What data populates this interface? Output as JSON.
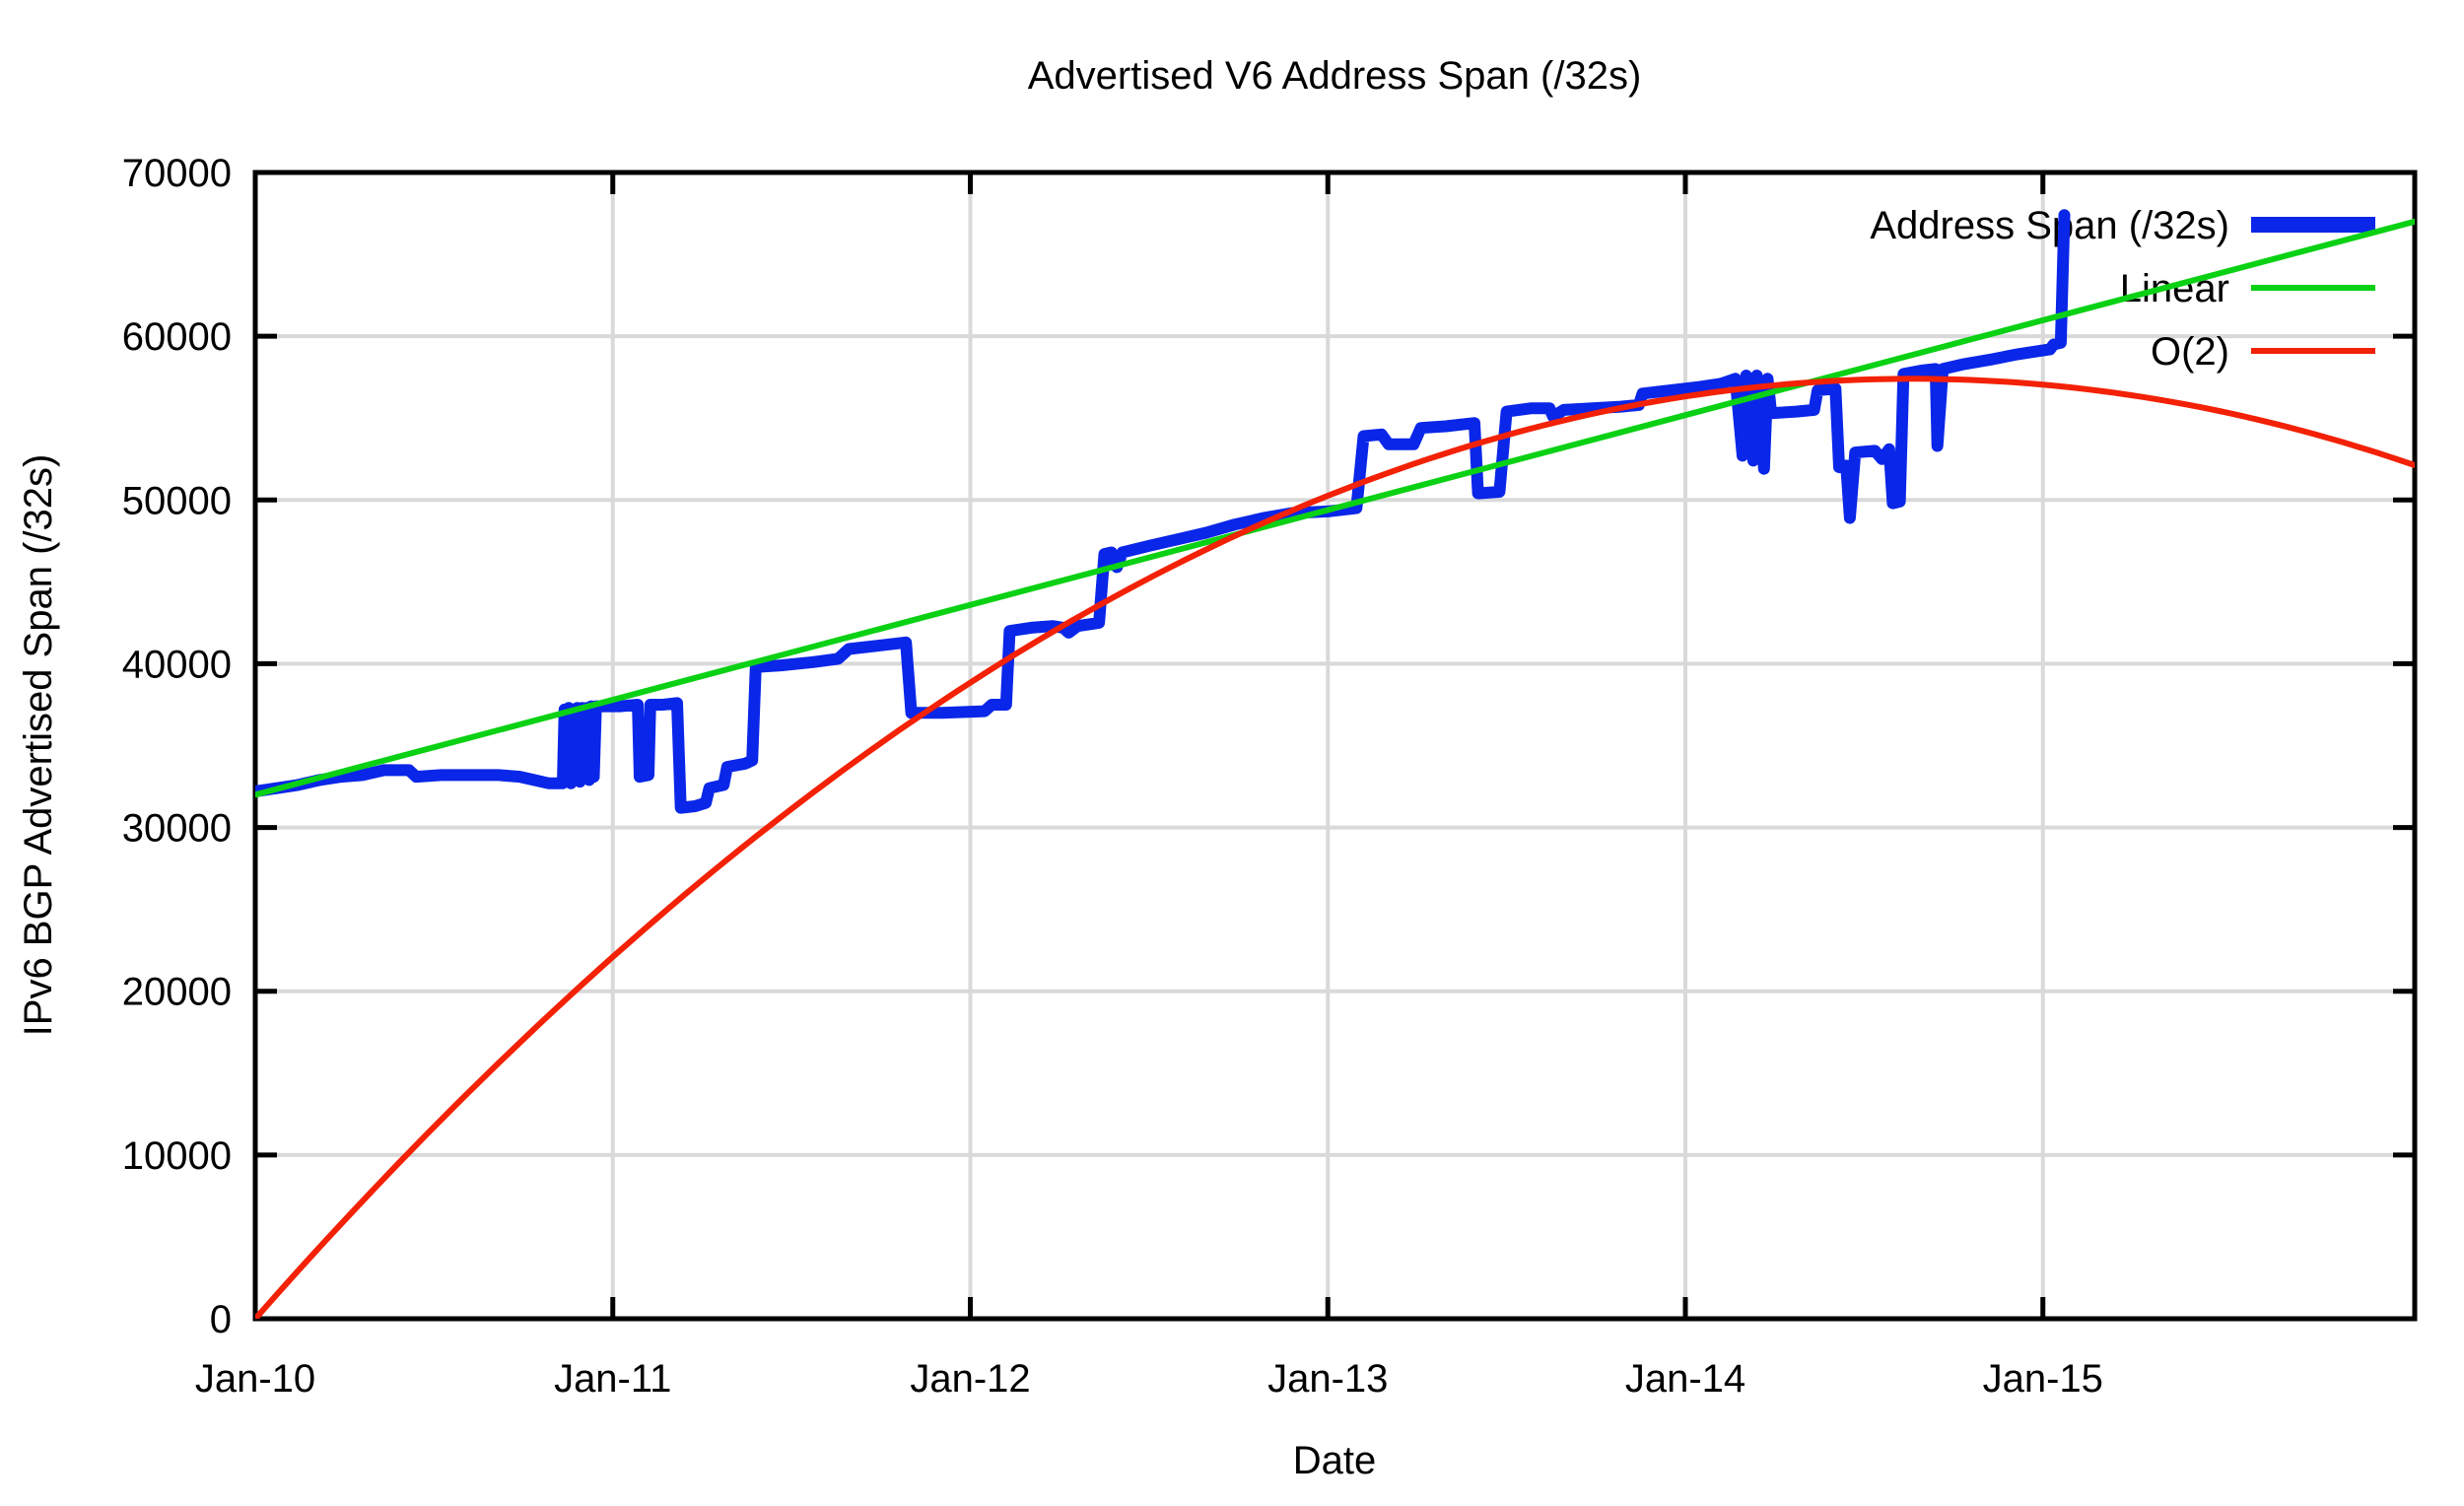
{
  "title": "Advertised V6 Address Span (/32s)",
  "colors": {
    "background": "#ffffff",
    "border": "#000000",
    "grid": "#d9d9d9",
    "blue_series": "#0a26e8",
    "green_series": "#0ad114",
    "red_series": "#f32105",
    "text": "#000000"
  },
  "legend": {
    "position": "top-right",
    "entries": [
      {
        "label": "Address Span (/32s)",
        "color": "#0a26e8",
        "sample_width": 16
      },
      {
        "label": "Linear",
        "color": "#0ad114",
        "sample_width": 6
      },
      {
        "label": "O(2)",
        "color": "#f32105",
        "sample_width": 6
      }
    ]
  },
  "chart_data": {
    "type": "line",
    "title": "Advertised V6 Address Span (/32s)",
    "xlabel": "Date",
    "ylabel": "IPv6 BGP Advertised Span (/32s)",
    "grid": true,
    "ylim": [
      0,
      70000
    ],
    "x_unit": "years since Jan-2010",
    "xlim": [
      0,
      6.04
    ],
    "y_ticks": [
      0,
      10000,
      20000,
      30000,
      40000,
      50000,
      60000,
      70000
    ],
    "x_ticks": [
      {
        "t": 0,
        "label": "Jan-10"
      },
      {
        "t": 1,
        "label": "Jan-11"
      },
      {
        "t": 2,
        "label": "Jan-12"
      },
      {
        "t": 3,
        "label": "Jan-13"
      },
      {
        "t": 4,
        "label": "Jan-14"
      },
      {
        "t": 5,
        "label": "Jan-15"
      }
    ],
    "series": [
      {
        "name": "Address Span (/32s)",
        "color": "#0a26e8",
        "stroke_width": 12,
        "points": [
          [
            0.0,
            32200
          ],
          [
            0.06,
            32400
          ],
          [
            0.12,
            32600
          ],
          [
            0.18,
            32900
          ],
          [
            0.24,
            33100
          ],
          [
            0.3,
            33200
          ],
          [
            0.36,
            33500
          ],
          [
            0.43,
            33500
          ],
          [
            0.45,
            33100
          ],
          [
            0.52,
            33200
          ],
          [
            0.6,
            33200
          ],
          [
            0.68,
            33200
          ],
          [
            0.74,
            33100
          ],
          [
            0.78,
            32900
          ],
          [
            0.82,
            32700
          ],
          [
            0.86,
            32700
          ],
          [
            0.865,
            37200
          ],
          [
            0.871,
            32800
          ],
          [
            0.877,
            37300
          ],
          [
            0.883,
            32700
          ],
          [
            0.889,
            37200
          ],
          [
            0.895,
            32900
          ],
          [
            0.901,
            37300
          ],
          [
            0.908,
            32800
          ],
          [
            0.914,
            37300
          ],
          [
            0.921,
            33000
          ],
          [
            0.927,
            37300
          ],
          [
            0.934,
            32900
          ],
          [
            0.94,
            37400
          ],
          [
            0.947,
            33100
          ],
          [
            0.953,
            37400
          ],
          [
            0.96,
            37400
          ],
          [
            1.02,
            37400
          ],
          [
            1.07,
            37500
          ],
          [
            1.075,
            33100
          ],
          [
            1.1,
            33200
          ],
          [
            1.105,
            37500
          ],
          [
            1.14,
            37500
          ],
          [
            1.18,
            37600
          ],
          [
            1.19,
            31200
          ],
          [
            1.23,
            31300
          ],
          [
            1.26,
            31500
          ],
          [
            1.27,
            32400
          ],
          [
            1.31,
            32600
          ],
          [
            1.32,
            33700
          ],
          [
            1.37,
            33900
          ],
          [
            1.39,
            34100
          ],
          [
            1.4,
            39800
          ],
          [
            1.47,
            39900
          ],
          [
            1.56,
            40100
          ],
          [
            1.63,
            40300
          ],
          [
            1.66,
            40900
          ],
          [
            1.74,
            41100
          ],
          [
            1.82,
            41300
          ],
          [
            1.835,
            37000
          ],
          [
            1.92,
            37000
          ],
          [
            2.04,
            37100
          ],
          [
            2.06,
            37500
          ],
          [
            2.1,
            37500
          ],
          [
            2.11,
            42000
          ],
          [
            2.17,
            42200
          ],
          [
            2.23,
            42300
          ],
          [
            2.26,
            42200
          ],
          [
            2.275,
            41900
          ],
          [
            2.3,
            42300
          ],
          [
            2.36,
            42500
          ],
          [
            2.375,
            46700
          ],
          [
            2.395,
            46800
          ],
          [
            2.41,
            45900
          ],
          [
            2.425,
            46800
          ],
          [
            2.5,
            47200
          ],
          [
            2.58,
            47600
          ],
          [
            2.66,
            48000
          ],
          [
            2.74,
            48500
          ],
          [
            2.82,
            48900
          ],
          [
            2.9,
            49200
          ],
          [
            3.0,
            49300
          ],
          [
            3.08,
            49500
          ],
          [
            3.1,
            53900
          ],
          [
            3.15,
            54000
          ],
          [
            3.17,
            53400
          ],
          [
            3.24,
            53400
          ],
          [
            3.26,
            54400
          ],
          [
            3.33,
            54500
          ],
          [
            3.41,
            54700
          ],
          [
            3.42,
            50400
          ],
          [
            3.48,
            50500
          ],
          [
            3.5,
            55400
          ],
          [
            3.57,
            55600
          ],
          [
            3.62,
            55600
          ],
          [
            3.63,
            55100
          ],
          [
            3.66,
            55500
          ],
          [
            3.74,
            55600
          ],
          [
            3.82,
            55700
          ],
          [
            3.87,
            55800
          ],
          [
            3.88,
            56500
          ],
          [
            3.96,
            56700
          ],
          [
            4.04,
            56900
          ],
          [
            4.1,
            57100
          ],
          [
            4.14,
            57400
          ],
          [
            4.16,
            52700
          ],
          [
            4.17,
            57600
          ],
          [
            4.19,
            52400
          ],
          [
            4.2,
            57600
          ],
          [
            4.22,
            51900
          ],
          [
            4.23,
            57400
          ],
          [
            4.24,
            55300
          ],
          [
            4.31,
            55400
          ],
          [
            4.36,
            55500
          ],
          [
            4.37,
            56700
          ],
          [
            4.42,
            56800
          ],
          [
            4.43,
            52000
          ],
          [
            4.45,
            52100
          ],
          [
            4.46,
            48900
          ],
          [
            4.475,
            52900
          ],
          [
            4.53,
            53000
          ],
          [
            4.55,
            52500
          ],
          [
            4.57,
            53100
          ],
          [
            4.58,
            49800
          ],
          [
            4.6,
            49900
          ],
          [
            4.61,
            57700
          ],
          [
            4.66,
            57900
          ],
          [
            4.7,
            58000
          ],
          [
            4.705,
            53300
          ],
          [
            4.72,
            58000
          ],
          [
            4.78,
            58300
          ],
          [
            4.86,
            58600
          ],
          [
            4.93,
            58900
          ],
          [
            4.99,
            59100
          ],
          [
            5.02,
            59200
          ],
          [
            5.03,
            59500
          ],
          [
            5.05,
            59600
          ],
          [
            5.06,
            67400
          ]
        ]
      },
      {
        "name": "Linear",
        "color": "#0ad114",
        "stroke_width": 6,
        "points": [
          [
            0,
            32000
          ],
          [
            6.04,
            67000
          ]
        ]
      },
      {
        "name": "O(2)",
        "color": "#f32105",
        "stroke_width": 6,
        "quadratic": {
          "t_vertex": 4.635,
          "v_vertex": 57400,
          "a": -2672,
          "t_start": 0,
          "t_end": 6.04,
          "step": 0.04
        }
      }
    ]
  }
}
